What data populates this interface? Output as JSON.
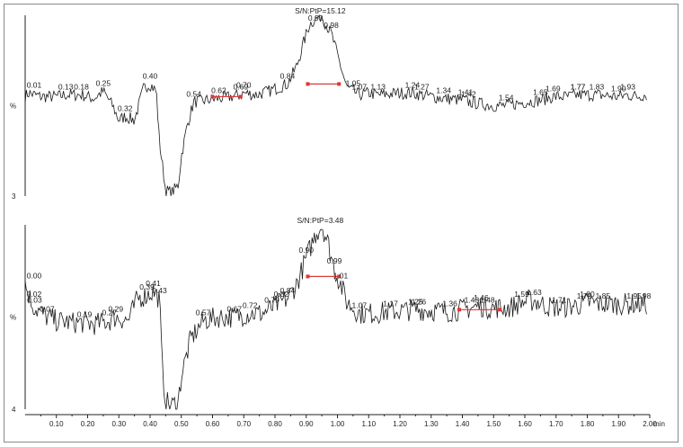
{
  "chart_data": [
    {
      "type": "line",
      "panel": "top",
      "ylabel": "%",
      "y_min_label": "3",
      "signal_to_noise_label": "S/N:PtP=15.12",
      "xlim": [
        0.0,
        2.0
      ],
      "baseline": 0.55,
      "series": [
        {
          "x": [
            0.0,
            0.01,
            0.05,
            0.1,
            0.13,
            0.18,
            0.22,
            0.25,
            0.28,
            0.3,
            0.32,
            0.35,
            0.38,
            0.4,
            0.42,
            0.43,
            0.45,
            0.47,
            0.49,
            0.5,
            0.52,
            0.54,
            0.58,
            0.62,
            0.66,
            0.69,
            0.7,
            0.74,
            0.78,
            0.81,
            0.84,
            0.87,
            0.89,
            0.91,
            0.93,
            0.95,
            0.96,
            0.98,
            1.0,
            1.01,
            1.03,
            1.05,
            1.07,
            1.1,
            1.13,
            1.2,
            1.24,
            1.27,
            1.34,
            1.41,
            1.42,
            1.5,
            1.54,
            1.6,
            1.65,
            1.69,
            1.74,
            1.77,
            1.83,
            1.9,
            1.93,
            1.96,
            1.98
          ],
          "y": [
            0.55,
            0.57,
            0.55,
            0.55,
            0.56,
            0.56,
            0.54,
            0.58,
            0.5,
            0.42,
            0.44,
            0.42,
            0.6,
            0.62,
            0.58,
            0.3,
            0.03,
            0.02,
            0.06,
            0.22,
            0.4,
            0.52,
            0.53,
            0.54,
            0.55,
            0.56,
            0.57,
            0.56,
            0.58,
            0.6,
            0.62,
            0.72,
            0.84,
            0.95,
            0.98,
            1.0,
            0.96,
            0.9,
            0.78,
            0.72,
            0.6,
            0.58,
            0.56,
            0.57,
            0.56,
            0.57,
            0.57,
            0.56,
            0.54,
            0.53,
            0.52,
            0.5,
            0.5,
            0.52,
            0.53,
            0.55,
            0.55,
            0.56,
            0.56,
            0.55,
            0.56,
            0.55,
            0.56
          ]
        }
      ],
      "peak_labels": [
        "0.01",
        "0.13",
        "0.18",
        "0.25",
        "0.32",
        "0.40",
        "0.54",
        "0.62",
        "0.69",
        "0.70",
        "0.84",
        "0.93",
        "0.98",
        "1.05",
        "1.07",
        "1.13",
        "1.24",
        "1.27",
        "1.34",
        "1.41",
        "1.42",
        "1.54",
        "1.65",
        "1.69",
        "1.77",
        "1.77",
        "1.83",
        "1.90",
        "1.93"
      ]
    },
    {
      "type": "line",
      "panel": "bottom",
      "ylabel": "%",
      "y_min_label": "4",
      "signal_to_noise_label": "S/N:PtP=3.48",
      "xlim": [
        0.0,
        2.0
      ],
      "series": [
        {
          "x": [
            0.0,
            0.02,
            0.03,
            0.07,
            0.1,
            0.15,
            0.19,
            0.22,
            0.27,
            0.29,
            0.33,
            0.36,
            0.39,
            0.41,
            0.43,
            0.44,
            0.45,
            0.47,
            0.49,
            0.5,
            0.53,
            0.57,
            0.62,
            0.67,
            0.72,
            0.76,
            0.79,
            0.82,
            0.84,
            0.87,
            0.9,
            0.93,
            0.95,
            0.97,
            0.99,
            1.01,
            1.03,
            1.07,
            1.12,
            1.17,
            1.25,
            1.26,
            1.36,
            1.43,
            1.46,
            1.48,
            1.55,
            1.59,
            1.63,
            1.67,
            1.71,
            1.75,
            1.79,
            1.8,
            1.85,
            1.92,
            1.95,
            1.98
          ],
          "y": [
            0.68,
            0.58,
            0.55,
            0.5,
            0.48,
            0.47,
            0.47,
            0.46,
            0.48,
            0.5,
            0.48,
            0.6,
            0.62,
            0.64,
            0.6,
            0.2,
            0.04,
            0.02,
            0.04,
            0.18,
            0.38,
            0.48,
            0.5,
            0.5,
            0.52,
            0.52,
            0.55,
            0.58,
            0.6,
            0.68,
            0.82,
            0.95,
            1.0,
            0.9,
            0.76,
            0.68,
            0.58,
            0.52,
            0.52,
            0.53,
            0.54,
            0.54,
            0.53,
            0.55,
            0.56,
            0.55,
            0.55,
            0.58,
            0.59,
            0.56,
            0.55,
            0.56,
            0.57,
            0.58,
            0.57,
            0.57,
            0.57,
            0.57
          ]
        }
      ],
      "peak_labels": [
        "0.00",
        "0.02",
        "0.03",
        "0.07",
        "0.19",
        "0.27",
        "0.29",
        "0.39",
        "0.41",
        "0.43",
        "0.57",
        "0.67",
        "0.72",
        "0.79",
        "0.82",
        "0.84",
        "0.90",
        "0.99",
        "1.01",
        "1.07",
        "1.17",
        "1.25",
        "1.26",
        "1.36",
        "1.43",
        "1.46",
        "1.48",
        "1.59",
        "1.63",
        "1.71",
        "1.79",
        "1.80",
        "1.85",
        "1.95",
        "1.98"
      ]
    }
  ],
  "x_axis": {
    "tick_labels": [
      "0.10",
      "0.20",
      "0.30",
      "0.40",
      "0.50",
      "0.60",
      "0.70",
      "0.80",
      "0.90",
      "1.00",
      "1.10",
      "1.20",
      "1.30",
      "1.40",
      "1.50",
      "1.60",
      "1.70",
      "1.80",
      "1.90",
      "2.00"
    ],
    "unit_label": "min"
  },
  "colors": {
    "trace": "#1a1a1a",
    "noise_marker": "#d83a3a",
    "frame": "#8a8a8a"
  }
}
